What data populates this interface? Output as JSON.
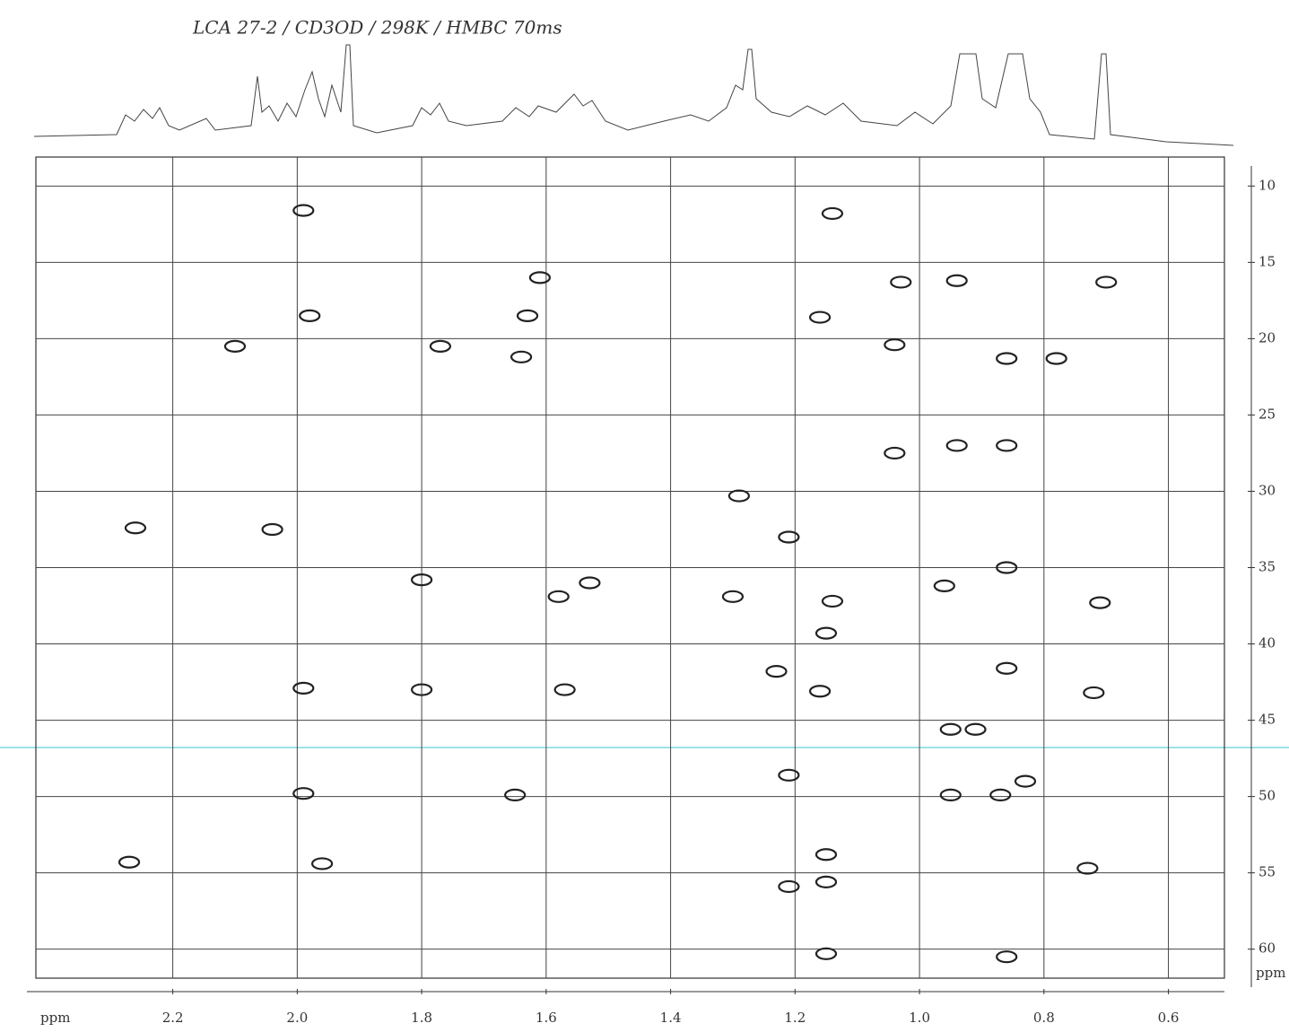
{
  "chart_data": {
    "type": "scatter",
    "title": "LCA 27-2 / CD3OD / 298K / HMBC 70ms",
    "x_label": "ppm",
    "y_label": "ppm",
    "xlim": [
      2.42,
      0.51
    ],
    "ylim": [
      8.1,
      61.9
    ],
    "grid": true,
    "color": "#222222",
    "xticks": [
      2.2,
      {
        "value": 2,
        "label": "2.0"
      },
      1.8,
      1.6,
      1.4,
      1.2,
      {
        "value": 1,
        "label": "1.0"
      },
      0.8,
      0.6
    ],
    "yticks": [
      10,
      15,
      20,
      25,
      30,
      35,
      40,
      45,
      50,
      55,
      60
    ],
    "x": [
      1.99,
      1.61,
      1.63,
      1.98,
      2.1,
      1.77,
      1.64,
      2.26,
      2.04,
      1.8,
      1.53,
      1.58,
      1.3,
      1.99,
      1.8,
      1.57,
      1.99,
      1.65,
      2.27,
      1.96,
      1.14,
      1.03,
      0.94,
      1.16,
      1.04,
      0.86,
      0.94,
      0.86,
      1.04,
      1.29,
      1.21,
      0.86,
      0.96,
      0.71,
      1.14,
      1.15,
      0.86,
      1.23,
      1.16,
      0.72,
      0.95,
      0.91,
      1.21,
      0.95,
      0.87,
      0.83,
      1.15,
      0.73,
      1.21,
      1.15,
      0.86,
      1.15,
      0.7,
      0.78
    ],
    "values": [
      11.6,
      16.0,
      18.5,
      18.5,
      20.5,
      20.5,
      21.2,
      32.4,
      32.5,
      35.8,
      36.0,
      36.9,
      36.9,
      42.9,
      43.0,
      43.0,
      49.8,
      49.9,
      54.3,
      54.4,
      11.8,
      16.3,
      16.2,
      18.6,
      20.4,
      21.3,
      27.0,
      27.0,
      27.5,
      30.3,
      33.0,
      35.0,
      36.2,
      37.3,
      37.2,
      39.3,
      41.6,
      41.8,
      43.1,
      43.2,
      45.6,
      45.6,
      48.6,
      49.9,
      49.9,
      49.0,
      53.8,
      54.7,
      55.9,
      55.6,
      60.5,
      60.3,
      16.3,
      21.3
    ]
  }
}
